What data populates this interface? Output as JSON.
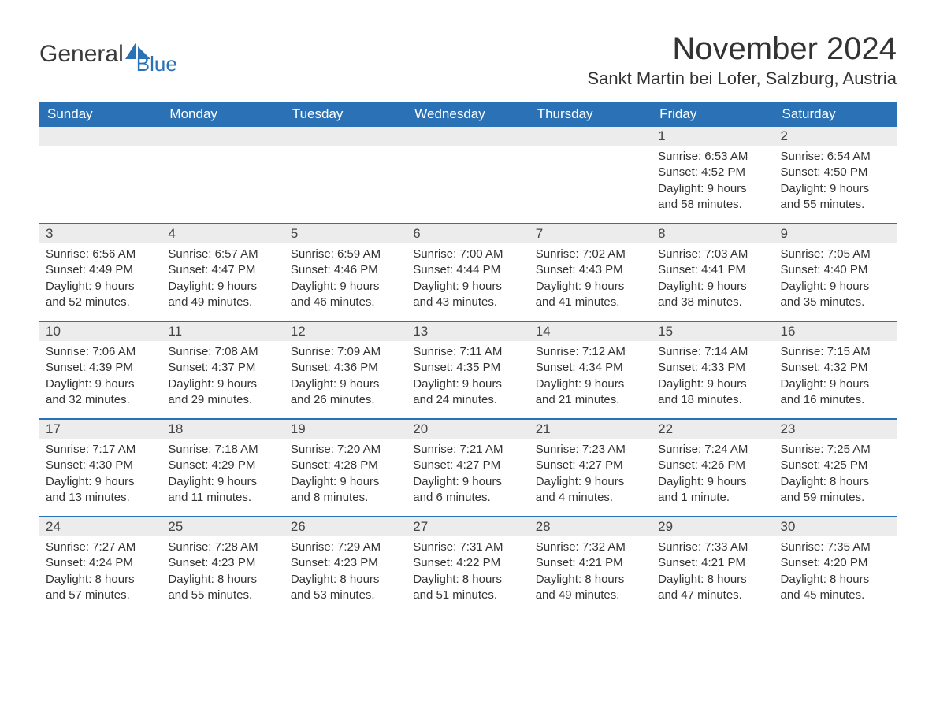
{
  "logo": {
    "text_a": "General",
    "text_b": "Blue"
  },
  "title": "November 2024",
  "location": "Sankt Martin bei Lofer, Salzburg, Austria",
  "colors": {
    "header_bg": "#2a72b5",
    "header_text": "#ffffff",
    "daynum_bg": "#ececec",
    "text": "#333333",
    "rule": "#2a72b5",
    "page_bg": "#ffffff"
  },
  "days_of_week": [
    "Sunday",
    "Monday",
    "Tuesday",
    "Wednesday",
    "Thursday",
    "Friday",
    "Saturday"
  ],
  "weeks": [
    [
      null,
      null,
      null,
      null,
      null,
      {
        "n": "1",
        "sunrise": "Sunrise: 6:53 AM",
        "sunset": "Sunset: 4:52 PM",
        "dl1": "Daylight: 9 hours",
        "dl2": "and 58 minutes."
      },
      {
        "n": "2",
        "sunrise": "Sunrise: 6:54 AM",
        "sunset": "Sunset: 4:50 PM",
        "dl1": "Daylight: 9 hours",
        "dl2": "and 55 minutes."
      }
    ],
    [
      {
        "n": "3",
        "sunrise": "Sunrise: 6:56 AM",
        "sunset": "Sunset: 4:49 PM",
        "dl1": "Daylight: 9 hours",
        "dl2": "and 52 minutes."
      },
      {
        "n": "4",
        "sunrise": "Sunrise: 6:57 AM",
        "sunset": "Sunset: 4:47 PM",
        "dl1": "Daylight: 9 hours",
        "dl2": "and 49 minutes."
      },
      {
        "n": "5",
        "sunrise": "Sunrise: 6:59 AM",
        "sunset": "Sunset: 4:46 PM",
        "dl1": "Daylight: 9 hours",
        "dl2": "and 46 minutes."
      },
      {
        "n": "6",
        "sunrise": "Sunrise: 7:00 AM",
        "sunset": "Sunset: 4:44 PM",
        "dl1": "Daylight: 9 hours",
        "dl2": "and 43 minutes."
      },
      {
        "n": "7",
        "sunrise": "Sunrise: 7:02 AM",
        "sunset": "Sunset: 4:43 PM",
        "dl1": "Daylight: 9 hours",
        "dl2": "and 41 minutes."
      },
      {
        "n": "8",
        "sunrise": "Sunrise: 7:03 AM",
        "sunset": "Sunset: 4:41 PM",
        "dl1": "Daylight: 9 hours",
        "dl2": "and 38 minutes."
      },
      {
        "n": "9",
        "sunrise": "Sunrise: 7:05 AM",
        "sunset": "Sunset: 4:40 PM",
        "dl1": "Daylight: 9 hours",
        "dl2": "and 35 minutes."
      }
    ],
    [
      {
        "n": "10",
        "sunrise": "Sunrise: 7:06 AM",
        "sunset": "Sunset: 4:39 PM",
        "dl1": "Daylight: 9 hours",
        "dl2": "and 32 minutes."
      },
      {
        "n": "11",
        "sunrise": "Sunrise: 7:08 AM",
        "sunset": "Sunset: 4:37 PM",
        "dl1": "Daylight: 9 hours",
        "dl2": "and 29 minutes."
      },
      {
        "n": "12",
        "sunrise": "Sunrise: 7:09 AM",
        "sunset": "Sunset: 4:36 PM",
        "dl1": "Daylight: 9 hours",
        "dl2": "and 26 minutes."
      },
      {
        "n": "13",
        "sunrise": "Sunrise: 7:11 AM",
        "sunset": "Sunset: 4:35 PM",
        "dl1": "Daylight: 9 hours",
        "dl2": "and 24 minutes."
      },
      {
        "n": "14",
        "sunrise": "Sunrise: 7:12 AM",
        "sunset": "Sunset: 4:34 PM",
        "dl1": "Daylight: 9 hours",
        "dl2": "and 21 minutes."
      },
      {
        "n": "15",
        "sunrise": "Sunrise: 7:14 AM",
        "sunset": "Sunset: 4:33 PM",
        "dl1": "Daylight: 9 hours",
        "dl2": "and 18 minutes."
      },
      {
        "n": "16",
        "sunrise": "Sunrise: 7:15 AM",
        "sunset": "Sunset: 4:32 PM",
        "dl1": "Daylight: 9 hours",
        "dl2": "and 16 minutes."
      }
    ],
    [
      {
        "n": "17",
        "sunrise": "Sunrise: 7:17 AM",
        "sunset": "Sunset: 4:30 PM",
        "dl1": "Daylight: 9 hours",
        "dl2": "and 13 minutes."
      },
      {
        "n": "18",
        "sunrise": "Sunrise: 7:18 AM",
        "sunset": "Sunset: 4:29 PM",
        "dl1": "Daylight: 9 hours",
        "dl2": "and 11 minutes."
      },
      {
        "n": "19",
        "sunrise": "Sunrise: 7:20 AM",
        "sunset": "Sunset: 4:28 PM",
        "dl1": "Daylight: 9 hours",
        "dl2": "and 8 minutes."
      },
      {
        "n": "20",
        "sunrise": "Sunrise: 7:21 AM",
        "sunset": "Sunset: 4:27 PM",
        "dl1": "Daylight: 9 hours",
        "dl2": "and 6 minutes."
      },
      {
        "n": "21",
        "sunrise": "Sunrise: 7:23 AM",
        "sunset": "Sunset: 4:27 PM",
        "dl1": "Daylight: 9 hours",
        "dl2": "and 4 minutes."
      },
      {
        "n": "22",
        "sunrise": "Sunrise: 7:24 AM",
        "sunset": "Sunset: 4:26 PM",
        "dl1": "Daylight: 9 hours",
        "dl2": "and 1 minute."
      },
      {
        "n": "23",
        "sunrise": "Sunrise: 7:25 AM",
        "sunset": "Sunset: 4:25 PM",
        "dl1": "Daylight: 8 hours",
        "dl2": "and 59 minutes."
      }
    ],
    [
      {
        "n": "24",
        "sunrise": "Sunrise: 7:27 AM",
        "sunset": "Sunset: 4:24 PM",
        "dl1": "Daylight: 8 hours",
        "dl2": "and 57 minutes."
      },
      {
        "n": "25",
        "sunrise": "Sunrise: 7:28 AM",
        "sunset": "Sunset: 4:23 PM",
        "dl1": "Daylight: 8 hours",
        "dl2": "and 55 minutes."
      },
      {
        "n": "26",
        "sunrise": "Sunrise: 7:29 AM",
        "sunset": "Sunset: 4:23 PM",
        "dl1": "Daylight: 8 hours",
        "dl2": "and 53 minutes."
      },
      {
        "n": "27",
        "sunrise": "Sunrise: 7:31 AM",
        "sunset": "Sunset: 4:22 PM",
        "dl1": "Daylight: 8 hours",
        "dl2": "and 51 minutes."
      },
      {
        "n": "28",
        "sunrise": "Sunrise: 7:32 AM",
        "sunset": "Sunset: 4:21 PM",
        "dl1": "Daylight: 8 hours",
        "dl2": "and 49 minutes."
      },
      {
        "n": "29",
        "sunrise": "Sunrise: 7:33 AM",
        "sunset": "Sunset: 4:21 PM",
        "dl1": "Daylight: 8 hours",
        "dl2": "and 47 minutes."
      },
      {
        "n": "30",
        "sunrise": "Sunrise: 7:35 AM",
        "sunset": "Sunset: 4:20 PM",
        "dl1": "Daylight: 8 hours",
        "dl2": "and 45 minutes."
      }
    ]
  ]
}
